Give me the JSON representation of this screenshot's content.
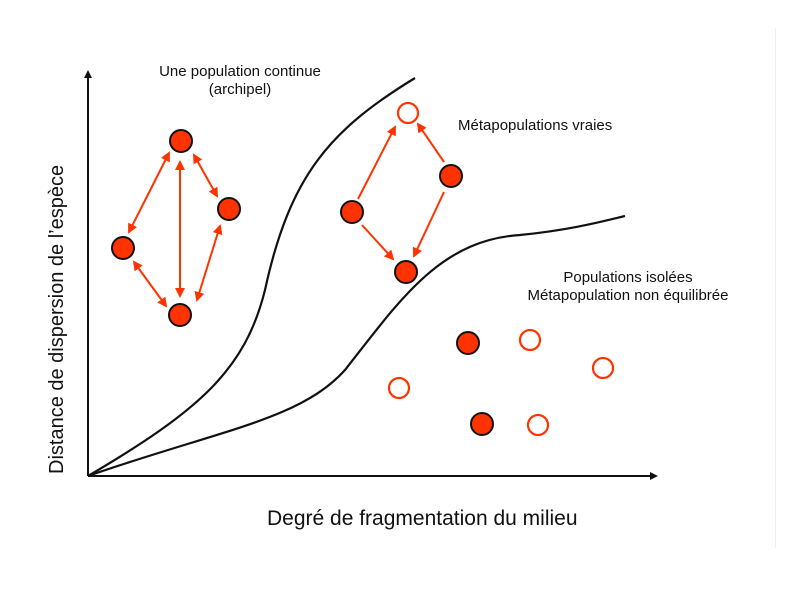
{
  "labels": {
    "continuous_line1": "Une population continue",
    "continuous_line2": "(archipel)",
    "true_meta": "Métapopulations vraies",
    "isolated_line1": "Populations isolées",
    "isolated_line2": "Métapopulation non équilibrée",
    "x_axis": "Degré de fragmentation du milieu",
    "y_axis": "Distance de dispersion de l’espèce"
  },
  "colors": {
    "occupied_patch_fill": "#ff3300",
    "empty_patch_stroke": "#ff3300",
    "arrow": "#ff3300",
    "curve": "#111111",
    "axis": "#111111"
  }
}
